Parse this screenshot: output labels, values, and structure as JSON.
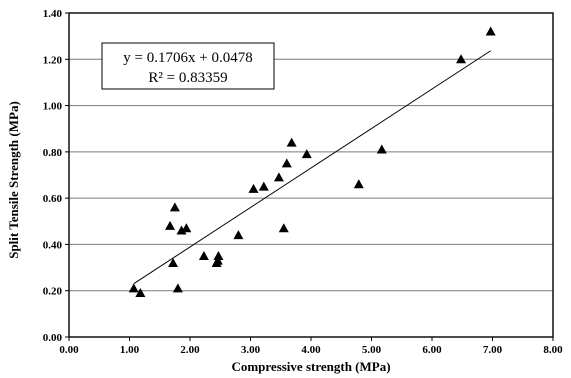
{
  "chart_data": {
    "type": "scatter",
    "title": "",
    "xlabel": "Compressive strength (MPa)",
    "ylabel": "Split Tensile Strength (MPa)",
    "xlim": [
      0,
      8
    ],
    "ylim": [
      0,
      1.4
    ],
    "x_ticks": [
      "0.00",
      "1.00",
      "2.00",
      "3.00",
      "4.00",
      "5.00",
      "6.00",
      "7.00",
      "8.00"
    ],
    "y_ticks": [
      "0.00",
      "0.20",
      "0.40",
      "0.60",
      "0.80",
      "1.00",
      "1.20",
      "1.40"
    ],
    "grid": "horizontal",
    "marker": "triangle",
    "series": [
      {
        "points": [
          {
            "x": 1.07,
            "y": 0.21
          },
          {
            "x": 1.18,
            "y": 0.19
          },
          {
            "x": 1.67,
            "y": 0.48
          },
          {
            "x": 1.72,
            "y": 0.32
          },
          {
            "x": 1.75,
            "y": 0.56
          },
          {
            "x": 1.8,
            "y": 0.21
          },
          {
            "x": 1.86,
            "y": 0.46
          },
          {
            "x": 1.94,
            "y": 0.47
          },
          {
            "x": 2.23,
            "y": 0.35
          },
          {
            "x": 2.44,
            "y": 0.32
          },
          {
            "x": 2.46,
            "y": 0.33
          },
          {
            "x": 2.47,
            "y": 0.35
          },
          {
            "x": 2.8,
            "y": 0.44
          },
          {
            "x": 3.05,
            "y": 0.64
          },
          {
            "x": 3.22,
            "y": 0.65
          },
          {
            "x": 3.47,
            "y": 0.69
          },
          {
            "x": 3.55,
            "y": 0.47
          },
          {
            "x": 3.6,
            "y": 0.75
          },
          {
            "x": 3.68,
            "y": 0.84
          },
          {
            "x": 3.93,
            "y": 0.79
          },
          {
            "x": 4.79,
            "y": 0.66
          },
          {
            "x": 5.17,
            "y": 0.81
          },
          {
            "x": 6.48,
            "y": 1.2
          },
          {
            "x": 6.97,
            "y": 1.32
          }
        ]
      }
    ],
    "trendline": {
      "slope": 0.1706,
      "intercept": 0.0478,
      "x_range": [
        1.07,
        6.97
      ],
      "equation": "y = 0.1706x + 0.0478",
      "r_squared": "R² = 0.83359"
    }
  }
}
